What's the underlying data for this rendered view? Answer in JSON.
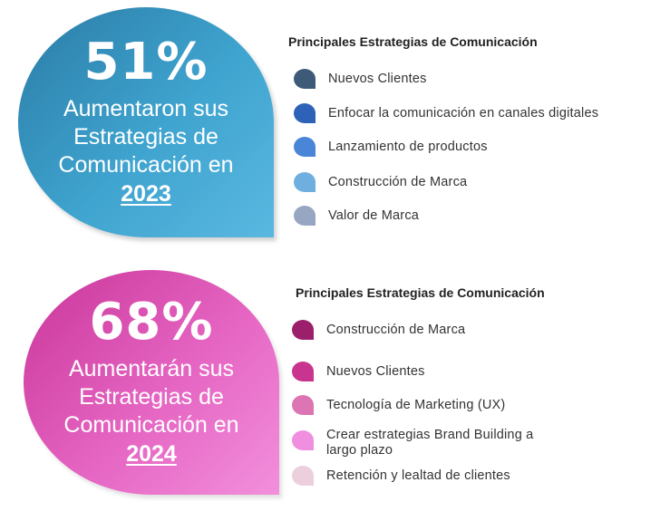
{
  "block_2023": {
    "percent": "51%",
    "line1": "Aumentaron sus",
    "line2": "Estrategias de",
    "line3": "Comunicación en",
    "year": "2023",
    "legend_title": "Principales Estrategias de Comunicación",
    "items": [
      {
        "label": "Nuevos Clientes",
        "color": "#3d5a78"
      },
      {
        "label": "Enfocar la comunicación en canales digitales",
        "color": "#2e62b8"
      },
      {
        "label": "Lanzamiento de productos",
        "color": "#4a86d8"
      },
      {
        "label": "Construcción de Marca",
        "color": "#6fafe0"
      },
      {
        "label": "Valor de Marca",
        "color": "#97a7c2"
      }
    ]
  },
  "block_2024": {
    "percent": "68%",
    "line1": "Aumentarán sus",
    "line2": "Estrategias de",
    "line3": "Comunicación en",
    "year": "2024",
    "legend_title": "Principales Estrategias de Comunicación",
    "items": [
      {
        "label": "Construcción de Marca",
        "color": "#9c1f6b"
      },
      {
        "label": "Nuevos Clientes",
        "color": "#c8348e"
      },
      {
        "label": "Tecnología de Marketing (UX)",
        "color": "#dd74b4"
      },
      {
        "label": "Crear estrategias Brand Building a",
        "label_line2": "largo plazo",
        "color": "#f08ee0"
      },
      {
        "label": "Retención y lealtad de clientes",
        "color": "#eccfdd"
      }
    ]
  }
}
